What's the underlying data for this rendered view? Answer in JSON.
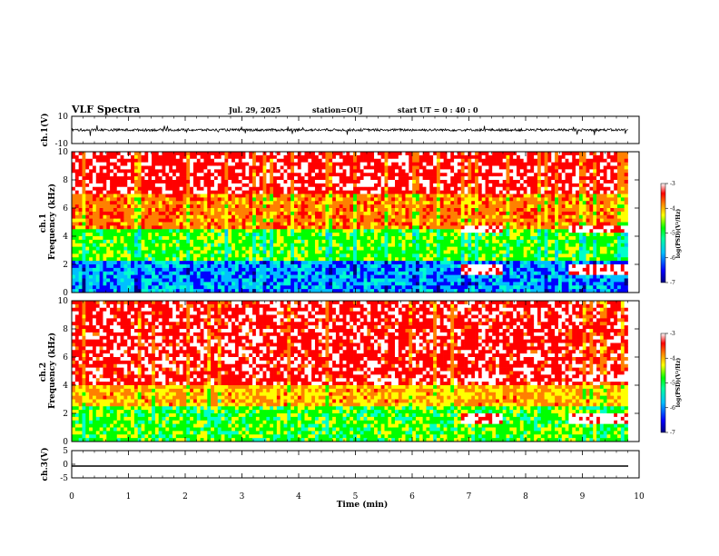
{
  "header": {
    "title": "VLF Spectra",
    "date": "Jul. 29, 2025",
    "station": "station=OUJ",
    "start": "start UT =  0 : 40 : 0"
  },
  "chart_data": {
    "type": "heatmap",
    "xlabel": "Time (min)",
    "xlim": [
      0,
      10
    ],
    "xticks": [
      "0",
      "1",
      "2",
      "3",
      "4",
      "5",
      "6",
      "7",
      "8",
      "9",
      "10"
    ],
    "panels": [
      {
        "id": "ch1-waveform",
        "ylabel": "ch.1(V)",
        "ylim": [
          -10,
          10
        ],
        "yticks": [
          "10",
          "-10"
        ]
      },
      {
        "id": "ch1-spectrogram",
        "ylabel": "ch.1\nFrequency (kHz)",
        "ylim": [
          0,
          10
        ],
        "yticks": [
          "0",
          "2",
          "4",
          "6",
          "8",
          "10"
        ],
        "colorbar": {
          "label": "log(PSD)(V²/Hz)",
          "range": [
            -7,
            -3
          ],
          "ticks": [
            "-3",
            "-4",
            "-5",
            "-6",
            "-7"
          ]
        }
      },
      {
        "id": "ch2-spectrogram",
        "ylabel": "ch.2\nFrequency (kHz)",
        "ylim": [
          0,
          10
        ],
        "yticks": [
          "0",
          "2",
          "4",
          "6",
          "8",
          "10"
        ],
        "colorbar": {
          "label": "log(PSD)(V²/Hz)",
          "range": [
            -7,
            -3
          ],
          "ticks": [
            "-3",
            "-4",
            "-5",
            "-6",
            "-7"
          ]
        }
      },
      {
        "id": "ch3-waveform",
        "ylabel": "ch.3(V)",
        "ylim": [
          -5,
          5
        ],
        "yticks": [
          "5",
          "0",
          "-5"
        ]
      }
    ],
    "data_end_min": 9.8,
    "ch3_level": -1.5,
    "colormap": [
      "#000080",
      "#0000ff",
      "#00bfff",
      "#00ffcc",
      "#00ff00",
      "#ffff00",
      "#ff8000",
      "#ff0000",
      "#ffffff"
    ]
  }
}
